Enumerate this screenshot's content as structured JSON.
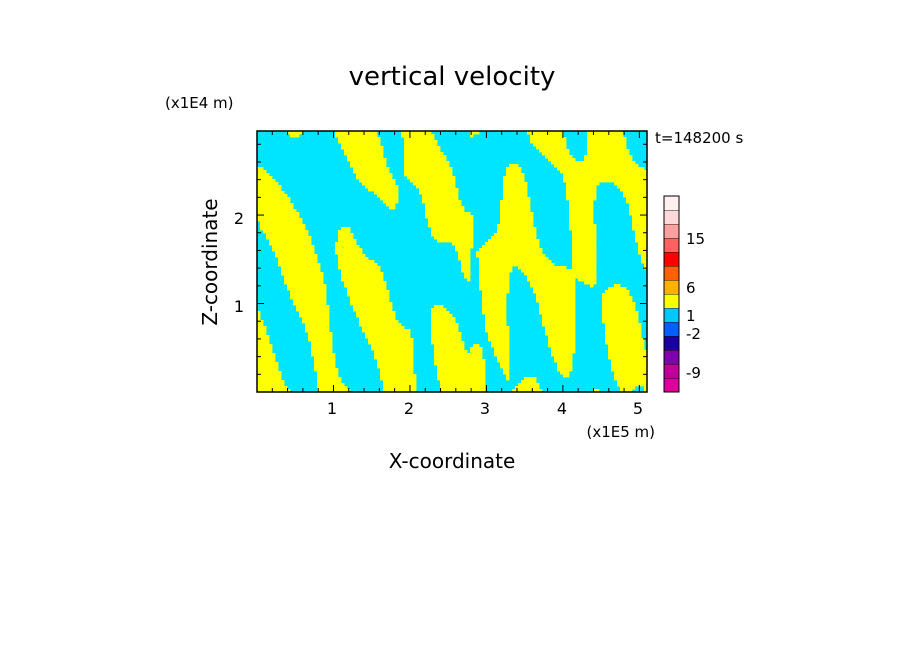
{
  "chart_data": {
    "type": "heatmap",
    "title": "vertical velocity",
    "xlabel": "X-coordinate",
    "ylabel": "Z-coordinate",
    "x_unit": "(x1E5 m)",
    "y_unit": "(x1E4 m)",
    "time_label": "t=148200 s",
    "x_ticks": [
      "1",
      "2",
      "3",
      "4",
      "5"
    ],
    "y_ticks": [
      "1",
      "2"
    ],
    "xlim": [
      0,
      5.1
    ],
    "ylim": [
      0,
      2.95
    ],
    "field_colors": {
      "positive": "#ffff00",
      "negative": "#00e5ff"
    },
    "colorbar": {
      "tick_labels": [
        "15",
        "6",
        "1",
        "-2",
        "-9"
      ],
      "colors": [
        "#e0009a",
        "#c0009a",
        "#8000b0",
        "#1a00a0",
        "#0060ff",
        "#00c8ff",
        "#ffff00",
        "#ffb000",
        "#ff6000",
        "#ff0000",
        "#ff6060",
        "#ffa0a0",
        "#ffd8d8",
        "#fff0f0"
      ]
    }
  }
}
